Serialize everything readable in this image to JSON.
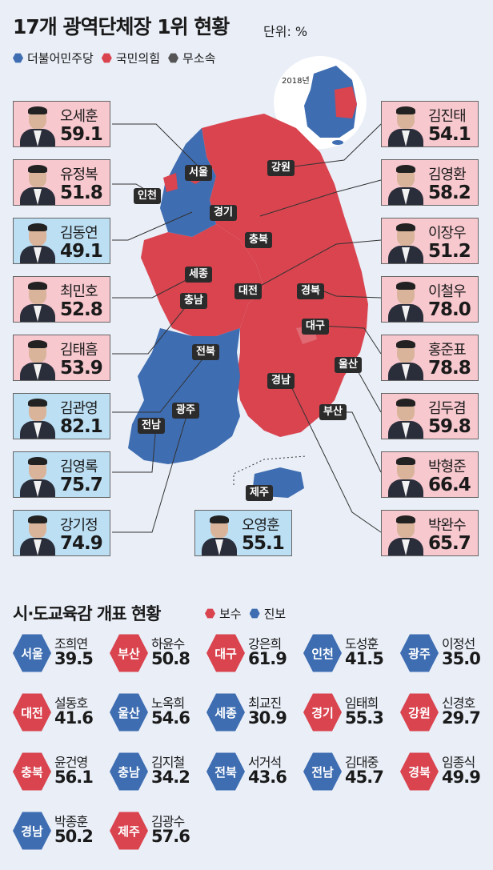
{
  "header": {
    "title": "17개 광역단체장 1위 현황",
    "unit": "단위: %"
  },
  "legend": [
    {
      "label": "더불어민주당",
      "color": "#3e6db1"
    },
    {
      "label": "국민의힘",
      "color": "#d9444f"
    },
    {
      "label": "무소속",
      "color": "#555555"
    }
  ],
  "inset_year": "2018년",
  "regions": {
    "seoul": "서울",
    "incheon": "인천",
    "gyeonggi": "경기",
    "gangwon": "강원",
    "chungbuk": "충북",
    "sejong": "세종",
    "chungnam": "충남",
    "daejeon": "대전",
    "gyeongbuk": "경북",
    "daegu": "대구",
    "jeonbuk": "전북",
    "ulsan": "울산",
    "gwangju": "광주",
    "gyeongnam": "경남",
    "jeonnam": "전남",
    "busan": "부산",
    "jeju": "제주"
  },
  "winners": {
    "seoul": {
      "name": "오세훈",
      "value": "59.1",
      "party": "red"
    },
    "incheon": {
      "name": "유정복",
      "value": "51.8",
      "party": "red"
    },
    "gyeonggi": {
      "name": "김동연",
      "value": "49.1",
      "party": "blue"
    },
    "sejong": {
      "name": "최민호",
      "value": "52.8",
      "party": "red"
    },
    "chungnam": {
      "name": "김태흠",
      "value": "53.9",
      "party": "red"
    },
    "jeonbuk": {
      "name": "김관영",
      "value": "82.1",
      "party": "blue"
    },
    "jeonnam": {
      "name": "김영록",
      "value": "75.7",
      "party": "blue"
    },
    "gwangju": {
      "name": "강기정",
      "value": "74.9",
      "party": "blue"
    },
    "jeju": {
      "name": "오영훈",
      "value": "55.1",
      "party": "blue"
    },
    "gangwon": {
      "name": "김진태",
      "value": "54.1",
      "party": "red"
    },
    "chungbuk": {
      "name": "김영환",
      "value": "58.2",
      "party": "red"
    },
    "daejeon": {
      "name": "이장우",
      "value": "51.2",
      "party": "red"
    },
    "gyeongbuk": {
      "name": "이철우",
      "value": "78.0",
      "party": "red"
    },
    "daegu": {
      "name": "홍준표",
      "value": "78.8",
      "party": "red"
    },
    "ulsan": {
      "name": "김두겸",
      "value": "59.8",
      "party": "red"
    },
    "busan": {
      "name": "박형준",
      "value": "66.4",
      "party": "red"
    },
    "gyeongnam": {
      "name": "박완수",
      "value": "65.7",
      "party": "red"
    }
  },
  "education": {
    "title": "시·도교육감 개표 현황",
    "legend": [
      {
        "label": "보수",
        "color": "#d9444f"
      },
      {
        "label": "진보",
        "color": "#3e6db1"
      }
    ],
    "items": [
      {
        "region": "서울",
        "name": "조희연",
        "value": "39.5",
        "camp": "blue"
      },
      {
        "region": "부산",
        "name": "하윤수",
        "value": "50.8",
        "camp": "red"
      },
      {
        "region": "대구",
        "name": "강은희",
        "value": "61.9",
        "camp": "red"
      },
      {
        "region": "인천",
        "name": "도성훈",
        "value": "41.5",
        "camp": "blue"
      },
      {
        "region": "광주",
        "name": "이정선",
        "value": "35.0",
        "camp": "blue"
      },
      {
        "region": "대전",
        "name": "설동호",
        "value": "41.6",
        "camp": "red"
      },
      {
        "region": "울산",
        "name": "노옥희",
        "value": "54.6",
        "camp": "blue"
      },
      {
        "region": "세종",
        "name": "최교진",
        "value": "30.9",
        "camp": "blue"
      },
      {
        "region": "경기",
        "name": "임태희",
        "value": "55.3",
        "camp": "red"
      },
      {
        "region": "강원",
        "name": "신경호",
        "value": "29.7",
        "camp": "red"
      },
      {
        "region": "충북",
        "name": "윤건영",
        "value": "56.1",
        "camp": "red"
      },
      {
        "region": "충남",
        "name": "김지철",
        "value": "34.2",
        "camp": "blue"
      },
      {
        "region": "전북",
        "name": "서거석",
        "value": "43.6",
        "camp": "blue"
      },
      {
        "region": "전남",
        "name": "김대중",
        "value": "45.7",
        "camp": "blue"
      },
      {
        "region": "경북",
        "name": "임종식",
        "value": "49.9",
        "camp": "red"
      },
      {
        "region": "경남",
        "name": "박종훈",
        "value": "50.2",
        "camp": "blue"
      },
      {
        "region": "제주",
        "name": "김광수",
        "value": "57.6",
        "camp": "red"
      }
    ]
  }
}
